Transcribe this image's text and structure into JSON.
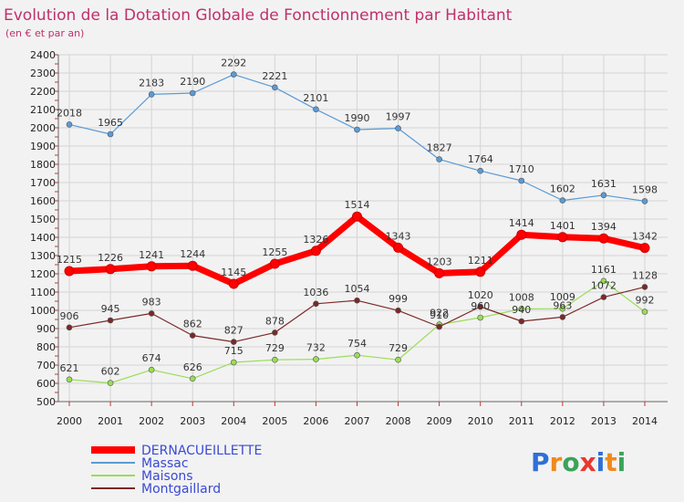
{
  "chart_data": {
    "type": "line",
    "title": "Evolution de la Dotation Globale de Fonctionnement par Habitant",
    "subtitle": "(en € et par an)",
    "x": [
      "2000",
      "2001",
      "2002",
      "2003",
      "2004",
      "2005",
      "2006",
      "2007",
      "2008",
      "2009",
      "2010",
      "2011",
      "2012",
      "2013",
      "2014"
    ],
    "ylim": [
      500,
      2400
    ],
    "yticks": [
      500,
      600,
      700,
      800,
      900,
      1000,
      1100,
      1200,
      1300,
      1400,
      1500,
      1600,
      1700,
      1800,
      1900,
      2000,
      2100,
      2200,
      2300,
      2400
    ],
    "grid": true,
    "legend_position": "bottom-left",
    "series": [
      {
        "name": "DERNACUEILLETTE",
        "color": "#ff0000",
        "values": [
          1215,
          1226,
          1241,
          1244,
          1145,
          1255,
          1326,
          1514,
          1343,
          1203,
          1211,
          1414,
          1401,
          1394,
          1342
        ]
      },
      {
        "name": "Massac",
        "color": "#5b9bd5",
        "values": [
          2018,
          1965,
          2183,
          2190,
          2292,
          2221,
          2101,
          1990,
          1997,
          1827,
          1764,
          1710,
          1602,
          1631,
          1598
        ]
      },
      {
        "name": "Maisons",
        "color": "#99dd55",
        "values": [
          621,
          602,
          674,
          626,
          715,
          729,
          732,
          754,
          729,
          922,
          960,
          1008,
          1009,
          1161,
          992
        ]
      },
      {
        "name": "Montgaillard",
        "color": "#7b2828",
        "values": [
          906,
          945,
          983,
          862,
          827,
          878,
          1036,
          1054,
          999,
          910,
          1020,
          940,
          963,
          1072,
          1128
        ]
      }
    ],
    "data_labels": [
      {
        "x": "2000",
        "text": "1215"
      },
      {
        "x": "2001",
        "text": "1226"
      },
      {
        "x": "2002",
        "text": "1241"
      },
      {
        "x": "2003",
        "text": "1244"
      },
      {
        "x": "2004",
        "text": "1145"
      },
      {
        "x": "2005",
        "text": "1255"
      },
      {
        "x": "2006",
        "text": "1326"
      },
      {
        "x": "2007",
        "text": "1514"
      },
      {
        "x": "2008",
        "text": "1343"
      },
      {
        "x": "2009",
        "text": "1203"
      },
      {
        "x": "2010",
        "text": "1211"
      },
      {
        "x": "2011",
        "text": "1414"
      },
      {
        "x": "2012",
        "text": "1401"
      },
      {
        "x": "2013",
        "text": "1394"
      },
      {
        "x": "2014",
        "text": "1342"
      },
      {
        "x": "2000",
        "text": "2018"
      },
      {
        "x": "2001",
        "text": "1965"
      },
      {
        "x": "2002",
        "text": "2183"
      },
      {
        "x": "2003",
        "text": "2190"
      },
      {
        "x": "2004",
        "text": "2292"
      },
      {
        "x": "2005",
        "text": "2221"
      },
      {
        "x": "2006",
        "text": "2101"
      },
      {
        "x": "2007",
        "text": "1990"
      },
      {
        "x": "2008",
        "text": "1997"
      },
      {
        "x": "2009",
        "text": "1827"
      },
      {
        "x": "2010",
        "text": "1764"
      },
      {
        "x": "2011",
        "text": "1710"
      },
      {
        "x": "2012",
        "text": "1602"
      },
      {
        "x": "2013",
        "text": "1631"
      },
      {
        "x": "2014",
        "text": "1598"
      },
      {
        "x": "2000",
        "text": "621"
      },
      {
        "x": "2001",
        "text": "602"
      },
      {
        "x": "2002",
        "text": "674"
      },
      {
        "x": "2003",
        "text": "626"
      },
      {
        "x": "2004",
        "text": "715"
      },
      {
        "x": "2005",
        "text": "729"
      },
      {
        "x": "2006",
        "text": "732"
      },
      {
        "x": "2007",
        "text": "754"
      },
      {
        "x": "2008",
        "text": "729"
      },
      {
        "x": "2009",
        "text": "922"
      },
      {
        "x": "2010",
        "text": "960"
      },
      {
        "x": "2011",
        "text": "1008"
      },
      {
        "x": "2012",
        "text": "1009"
      },
      {
        "x": "2013",
        "text": "1161"
      },
      {
        "x": "2014",
        "text": "992"
      },
      {
        "x": "2000",
        "text": "906"
      },
      {
        "x": "2001",
        "text": "945"
      },
      {
        "x": "2002",
        "text": "983"
      },
      {
        "x": "2003",
        "text": "862"
      },
      {
        "x": "2004",
        "text": "827"
      },
      {
        "x": "2005",
        "text": "878"
      },
      {
        "x": "2006",
        "text": "1036"
      },
      {
        "x": "2007",
        "text": "1054"
      },
      {
        "x": "2008",
        "text": "999"
      },
      {
        "x": "2009",
        "text": "910"
      },
      {
        "x": "2010",
        "text": "1020"
      },
      {
        "x": "2011",
        "text": "940"
      },
      {
        "x": "2012",
        "text": "963"
      },
      {
        "x": "2013",
        "text": "1072"
      },
      {
        "x": "2014",
        "text": "1128"
      }
    ]
  },
  "logo": {
    "text": "Proxiti",
    "letters": [
      {
        "ch": "P",
        "color": "#2f6fd6"
      },
      {
        "ch": "r",
        "color": "#f08a1c"
      },
      {
        "ch": "o",
        "color": "#3aa35a"
      },
      {
        "ch": "x",
        "color": "#e8392f"
      },
      {
        "ch": "i",
        "color": "#2f6fd6"
      },
      {
        "ch": "t",
        "color": "#f08a1c"
      },
      {
        "ch": "i",
        "color": "#3aa35a"
      }
    ]
  }
}
